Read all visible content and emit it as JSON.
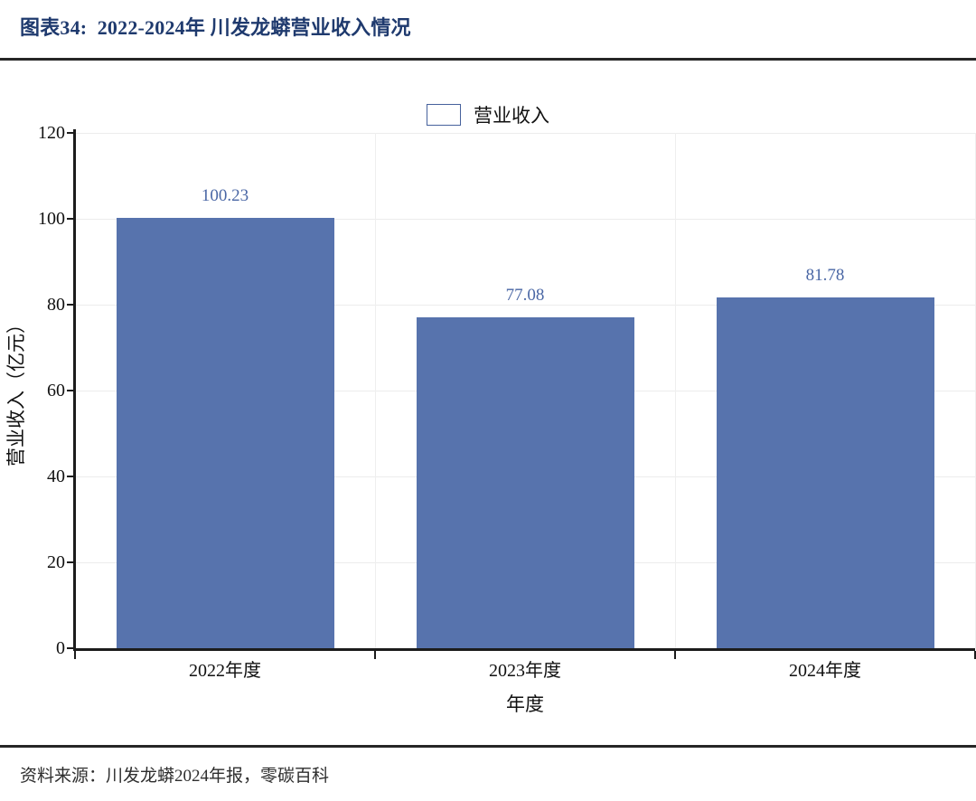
{
  "header": {
    "title": "图表34:  2022-2024年 川发龙蟒营业收入情况"
  },
  "footer": {
    "source": "资料来源：川发龙蟒2024年报，零碳百科"
  },
  "chart_data": {
    "type": "bar",
    "categories": [
      "2022年度",
      "2023年度",
      "2024年度"
    ],
    "series": [
      {
        "name": "营业收入",
        "values": [
          100.23,
          77.08,
          81.78
        ]
      }
    ],
    "value_labels": [
      "100.23",
      "77.08",
      "81.78"
    ],
    "xlabel": "年度",
    "ylabel": "营业收入（亿元）",
    "ylim": [
      0,
      120
    ],
    "yticks": [
      0,
      20,
      40,
      60,
      80,
      100,
      120
    ],
    "grid": "light horizontal and vertical major gridlines",
    "legend_position": "top-center",
    "colors": {
      "bar_fill": "#5773ad",
      "bar_value_label": "#4a67a5",
      "title_text": "#1f3a6e",
      "axis_line": "#1c1c1c",
      "rule_line": "#262626"
    }
  }
}
